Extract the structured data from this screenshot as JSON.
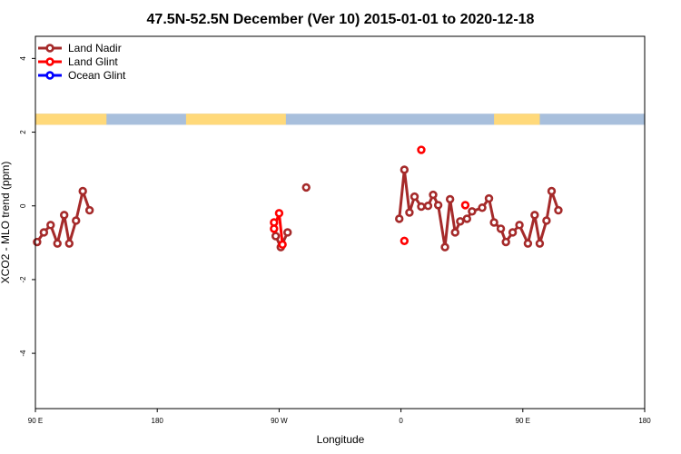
{
  "chart_data": {
    "type": "line",
    "title": "47.5N-52.5N December (Ver 10)   2015-01-01 to 2020-12-18",
    "xlabel": "Longitude",
    "ylabel": "XCO2 - MLO trend (ppm)",
    "xlim": [
      -90,
      270
    ],
    "ylim": [
      -5.5,
      4.6
    ],
    "x_ticks": [
      {
        "value": -90,
        "label": "90 E"
      },
      {
        "value": -18,
        "label": "180"
      },
      {
        "value": 54,
        "label": "90 W"
      },
      {
        "value": 126,
        "label": "0"
      },
      {
        "value": 198,
        "label": "90 E"
      },
      {
        "value": 270,
        "label": "180"
      }
    ],
    "y_ticks": [
      {
        "value": -4,
        "label": "-4"
      },
      {
        "value": -2,
        "label": "-2"
      },
      {
        "value": 0,
        "label": "0"
      },
      {
        "value": 2,
        "label": "2"
      },
      {
        "value": 4,
        "label": "4"
      }
    ],
    "legend": [
      {
        "name": "Land Nadir",
        "color": "#a52a2a"
      },
      {
        "name": "Land Glint",
        "color": "#ff0000"
      },
      {
        "name": "Ocean Glint",
        "color": "#0000ff"
      }
    ],
    "landmask_band": {
      "y_from": 2.2,
      "y_to": 2.5,
      "land_color": "#ffd97a",
      "ocean_color": "#a8bfdc",
      "land_ranges": [
        [
          -90,
          -48
        ],
        [
          -1,
          58
        ],
        [
          181,
          208
        ]
      ]
    },
    "series": [
      {
        "name": "Land Nadir",
        "color": "#a52a2a",
        "segments": [
          [
            [
              -89,
              -0.98
            ],
            [
              -85,
              -0.72
            ],
            [
              -81,
              -0.52
            ],
            [
              -77,
              -1.02
            ],
            [
              -73,
              -0.25
            ],
            [
              -70,
              -1.02
            ],
            [
              -66,
              -0.4
            ],
            [
              -62,
              0.4
            ],
            [
              -58,
              -0.12
            ]
          ],
          [
            [
              52,
              -0.82
            ],
            [
              55,
              -1.12
            ],
            [
              59,
              -0.72
            ]
          ],
          [
            [
              70,
              0.5
            ]
          ],
          [
            [
              125,
              -0.35
            ],
            [
              128,
              0.98
            ],
            [
              131,
              -0.18
            ],
            [
              134,
              0.25
            ],
            [
              138,
              -0.02
            ],
            [
              142,
              0.0
            ],
            [
              145,
              0.3
            ],
            [
              148,
              0.02
            ],
            [
              152,
              -1.12
            ],
            [
              155,
              0.18
            ],
            [
              158,
              -0.72
            ],
            [
              161,
              -0.42
            ],
            [
              165,
              -0.35
            ],
            [
              168,
              -0.15
            ],
            [
              174,
              -0.05
            ],
            [
              178,
              0.2
            ],
            [
              181,
              -0.45
            ],
            [
              185,
              -0.62
            ],
            [
              188,
              -0.98
            ],
            [
              192,
              -0.72
            ],
            [
              196,
              -0.52
            ],
            [
              201,
              -1.02
            ],
            [
              205,
              -0.25
            ],
            [
              208,
              -1.02
            ],
            [
              212,
              -0.4
            ],
            [
              215,
              0.4
            ],
            [
              219,
              -0.12
            ]
          ]
        ]
      },
      {
        "name": "Land Glint",
        "color": "#ff0000",
        "segments": [
          [
            [
              51,
              -0.45
            ],
            [
              51,
              -0.62
            ],
            [
              54,
              -0.2
            ],
            [
              56,
              -1.05
            ]
          ],
          [
            [
              128,
              -0.95
            ]
          ],
          [
            [
              138,
              1.52
            ]
          ],
          [
            [
              164,
              0.02
            ]
          ]
        ]
      },
      {
        "name": "Ocean Glint",
        "color": "#0000ff",
        "segments": []
      }
    ]
  }
}
